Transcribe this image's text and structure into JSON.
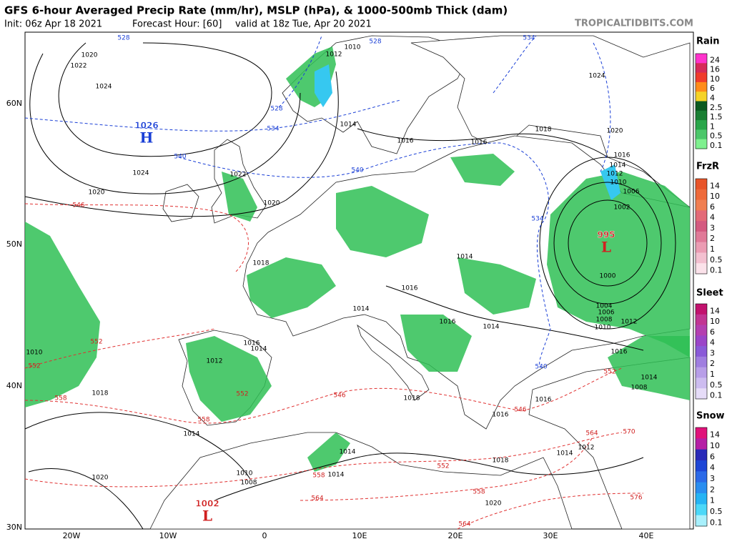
{
  "header": {
    "title": "GFS 6-hour Averaged Precip Rate (mm/hr), MSLP (hPa), & 1000-500mb Thick (dam)",
    "init": "Init: 06z Apr 18 2021",
    "forecast_hour": "Forecast Hour: [60]",
    "valid": "valid at 18z Tue, Apr 20 2021",
    "source": "TROPICALTIDBITS.COM"
  },
  "map": {
    "lat_labels": [
      "60N",
      "50N",
      "40N",
      "30N"
    ],
    "lon_labels": [
      "20W",
      "10W",
      "0",
      "10E",
      "20E",
      "30E",
      "40E"
    ],
    "pressure_centers": [
      {
        "letter": "H",
        "value": "1026"
      },
      {
        "letter": "L",
        "value": "995"
      },
      {
        "letter": "L",
        "value": "1002"
      }
    ],
    "isobar_labels": [
      "1020",
      "1022",
      "1024",
      "1024",
      "1020",
      "1020",
      "1022",
      "1014",
      "1016",
      "1016",
      "1018",
      "1020",
      "1024",
      "1012",
      "1010",
      "1016",
      "1014",
      "1012",
      "1010",
      "1006",
      "1002",
      "1000",
      "1004",
      "1006",
      "1008",
      "1010",
      "1012",
      "1016",
      "1014",
      "1008",
      "1018",
      "1016",
      "1014",
      "1012",
      "1010",
      "1018",
      "1014",
      "1016",
      "1014",
      "1014",
      "1016",
      "1014",
      "1018",
      "1016",
      "1016",
      "1014",
      "1012",
      "1018",
      "1014",
      "1014",
      "1010",
      "1008",
      "1020",
      "1020"
    ],
    "thickness_labels": [
      "528",
      "534",
      "528",
      "534",
      "540",
      "540",
      "534",
      "540",
      "528",
      "546",
      "552",
      "552",
      "558",
      "552",
      "546",
      "558",
      "546",
      "552",
      "564",
      "570",
      "552",
      "558",
      "564",
      "558",
      "564",
      "576"
    ]
  },
  "legend": [
    {
      "title": "Rain",
      "levels": [
        "24",
        "16",
        "10",
        "6",
        "4",
        "2.5",
        "1.5",
        "1",
        "0.5",
        "0.1"
      ],
      "colors": [
        "#ff33cc",
        "#d62b5a",
        "#f03c2c",
        "#ff8c1a",
        "#f5d327",
        "#0b5a20",
        "#1a7f33",
        "#2aa64a",
        "#4cc76a",
        "#7ff08f"
      ]
    },
    {
      "title": "FrzR",
      "levels": [
        "14",
        "10",
        "6",
        "4",
        "3",
        "2",
        "1",
        "0.5",
        "0.1"
      ],
      "colors": [
        "#e8552a",
        "#ee6a3a",
        "#f07f52",
        "#e36a78",
        "#d45a80",
        "#e07a98",
        "#eb9cb3",
        "#f3c0d0",
        "#fbe2ea"
      ]
    },
    {
      "title": "Sleet",
      "levels": [
        "14",
        "10",
        "6",
        "4",
        "3",
        "2",
        "1",
        "0.5",
        "0.1"
      ],
      "colors": [
        "#c2126e",
        "#c23593",
        "#b43fb0",
        "#9b45c8",
        "#8a5ad8",
        "#a07ee0",
        "#b89ee8",
        "#cdbcf0",
        "#e6dcf8"
      ]
    },
    {
      "title": "Snow",
      "levels": [
        "14",
        "10",
        "6",
        "4",
        "3",
        "2",
        "1",
        "0.5",
        "0.1"
      ],
      "colors": [
        "#e0127a",
        "#b51fa5",
        "#2a2ab8",
        "#1e46d6",
        "#2c6ae8",
        "#2a8ef0",
        "#26b4f4",
        "#4cd8f8",
        "#a8f0fc"
      ]
    }
  ]
}
